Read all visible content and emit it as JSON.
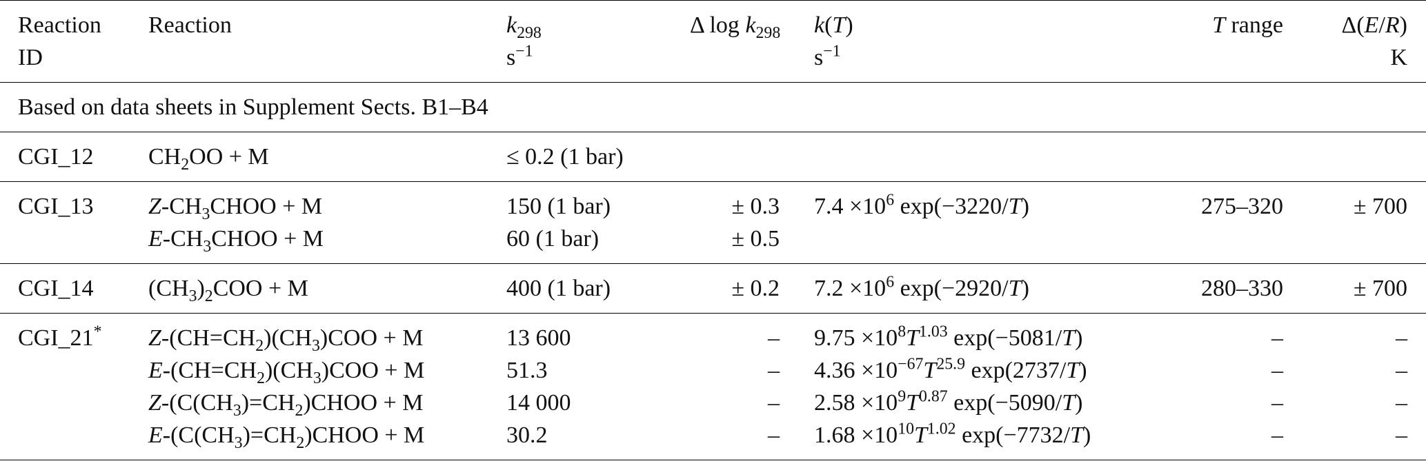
{
  "table": {
    "header": [
      [
        [
          "Reaction"
        ],
        [
          "ID"
        ]
      ],
      [
        [
          "Reaction"
        ]
      ],
      [
        [
          {
            "i": "k"
          },
          {
            "sub": "298"
          }
        ],
        [
          "s",
          {
            "sup": "−1"
          }
        ]
      ],
      [
        [
          "Δ log ",
          {
            "i": "k"
          },
          {
            "sub": "298"
          }
        ]
      ],
      [
        [
          {
            "i": "k"
          },
          "(",
          {
            "i": "T"
          },
          ")"
        ],
        [
          "s",
          {
            "sup": "−1"
          }
        ]
      ],
      [
        [
          {
            "i": "T"
          },
          " range"
        ]
      ],
      [
        [
          "Δ(",
          {
            "i": "E"
          },
          "/",
          {
            "i": "R"
          },
          ")"
        ],
        [
          "K"
        ]
      ]
    ],
    "section_row": "Based on data sheets in Supplement Sects. B1–B4",
    "groups": [
      [
        [
          [
            "CGI_12"
          ],
          [
            "CH",
            {
              "sub": "2"
            },
            "OO + M"
          ],
          [
            "≤ 0.2 (1 bar)"
          ],
          [],
          [],
          [],
          []
        ]
      ],
      [
        [
          [
            "CGI_13"
          ],
          [
            {
              "i": "Z"
            },
            "-CH",
            {
              "sub": "3"
            },
            "CHOO + M"
          ],
          [
            "150 (1 bar)"
          ],
          [
            "± 0.3"
          ],
          [
            "7.4 ×10",
            {
              "sup": "6"
            },
            " exp(−3220/",
            {
              "i": "T"
            },
            ")"
          ],
          [
            "275–320"
          ],
          [
            "± 700"
          ]
        ],
        [
          [],
          [
            {
              "i": "E"
            },
            "-CH",
            {
              "sub": "3"
            },
            "CHOO + M"
          ],
          [
            "60 (1 bar)"
          ],
          [
            "± 0.5"
          ],
          [],
          [],
          []
        ]
      ],
      [
        [
          [
            "CGI_14"
          ],
          [
            "(CH",
            {
              "sub": "3"
            },
            ")",
            {
              "sub": "2"
            },
            "COO + M"
          ],
          [
            "400 (1 bar)"
          ],
          [
            "± 0.2"
          ],
          [
            "7.2 ×10",
            {
              "sup": "6"
            },
            " exp(−2920/",
            {
              "i": "T"
            },
            ")"
          ],
          [
            "280–330"
          ],
          [
            "± 700"
          ]
        ]
      ],
      [
        [
          [
            "CGI_21",
            {
              "sup": "*"
            }
          ],
          [
            {
              "i": "Z"
            },
            "-(CH=CH",
            {
              "sub": "2"
            },
            ")(CH",
            {
              "sub": "3"
            },
            ")COO + M"
          ],
          [
            "13 600"
          ],
          [
            "–"
          ],
          [
            "9.75 ×10",
            {
              "sup": "8"
            },
            {
              "i": "T"
            },
            {
              "sup": "1.03"
            },
            " exp(−5081/",
            {
              "i": "T"
            },
            ")"
          ],
          [
            "–"
          ],
          [
            "–"
          ]
        ],
        [
          [],
          [
            {
              "i": "E"
            },
            "-(CH=CH",
            {
              "sub": "2"
            },
            ")(CH",
            {
              "sub": "3"
            },
            ")COO + M"
          ],
          [
            "51.3"
          ],
          [
            "–"
          ],
          [
            "4.36 ×10",
            {
              "sup": "−67"
            },
            {
              "i": "T"
            },
            {
              "sup": "25.9"
            },
            " exp(2737/",
            {
              "i": "T"
            },
            ")"
          ],
          [
            "–"
          ],
          [
            "–"
          ]
        ],
        [
          [],
          [
            {
              "i": "Z"
            },
            "-(C(CH",
            {
              "sub": "3"
            },
            ")=CH",
            {
              "sub": "2"
            },
            ")CHOO + M"
          ],
          [
            "14 000"
          ],
          [
            "–"
          ],
          [
            "2.58 ×10",
            {
              "sup": "9"
            },
            {
              "i": "T"
            },
            {
              "sup": "0.87"
            },
            " exp(−5090/",
            {
              "i": "T"
            },
            ")"
          ],
          [
            "–"
          ],
          [
            "–"
          ]
        ],
        [
          [],
          [
            {
              "i": "E"
            },
            "-(C(CH",
            {
              "sub": "3"
            },
            ")=CH",
            {
              "sub": "2"
            },
            ")CHOO + M"
          ],
          [
            "30.2"
          ],
          [
            "–"
          ],
          [
            "1.68 ×10",
            {
              "sup": "10"
            },
            {
              "i": "T"
            },
            {
              "sup": "1.02"
            },
            " exp(−7732/",
            {
              "i": "T"
            },
            ")"
          ],
          [
            "–"
          ],
          [
            "–"
          ]
        ]
      ]
    ]
  }
}
